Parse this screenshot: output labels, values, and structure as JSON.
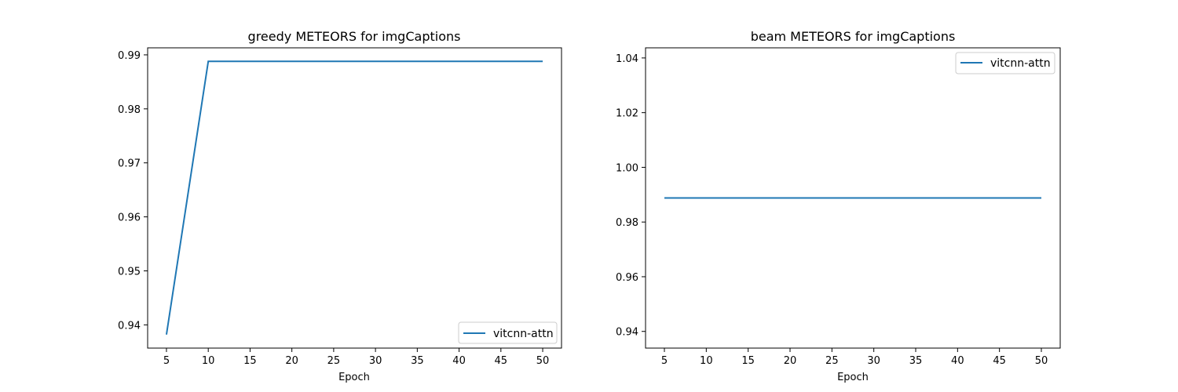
{
  "chart_data": [
    {
      "type": "line",
      "title": "greedy METEORS for imgCaptions",
      "xlabel": "Epoch",
      "ylabel": "",
      "x": [
        5,
        10,
        15,
        20,
        25,
        30,
        35,
        40,
        45,
        50
      ],
      "series": [
        {
          "name": "vitcnn-attn",
          "color": "#1f77b4",
          "values": [
            0.9382,
            0.9888,
            0.9888,
            0.9888,
            0.9888,
            0.9888,
            0.9888,
            0.9888,
            0.9888,
            0.9888
          ]
        }
      ],
      "xlim": [
        2.75,
        52.25
      ],
      "ylim": [
        0.9357,
        0.9913
      ],
      "xticks": [
        "5",
        "10",
        "15",
        "20",
        "25",
        "30",
        "35",
        "40",
        "45",
        "50"
      ],
      "yticks": [
        "0.94",
        "0.95",
        "0.96",
        "0.97",
        "0.98",
        "0.99"
      ],
      "grid": false,
      "legend": "lower right"
    },
    {
      "type": "line",
      "title": "beam METEORS for imgCaptions",
      "xlabel": "Epoch",
      "ylabel": "",
      "x": [
        5,
        10,
        15,
        20,
        25,
        30,
        35,
        40,
        45,
        50
      ],
      "series": [
        {
          "name": "vitcnn-attn",
          "color": "#1f77b4",
          "values": [
            0.9888,
            0.9888,
            0.9888,
            0.9888,
            0.9888,
            0.9888,
            0.9888,
            0.9888,
            0.9888,
            0.9888
          ]
        }
      ],
      "xlim": [
        2.75,
        52.25
      ],
      "ylim": [
        0.9339,
        1.0437
      ],
      "xticks": [
        "5",
        "10",
        "15",
        "20",
        "25",
        "30",
        "35",
        "40",
        "45",
        "50"
      ],
      "yticks": [
        "0.94",
        "0.96",
        "0.98",
        "1.00",
        "1.02",
        "1.04"
      ],
      "grid": false,
      "legend": "upper right"
    }
  ]
}
